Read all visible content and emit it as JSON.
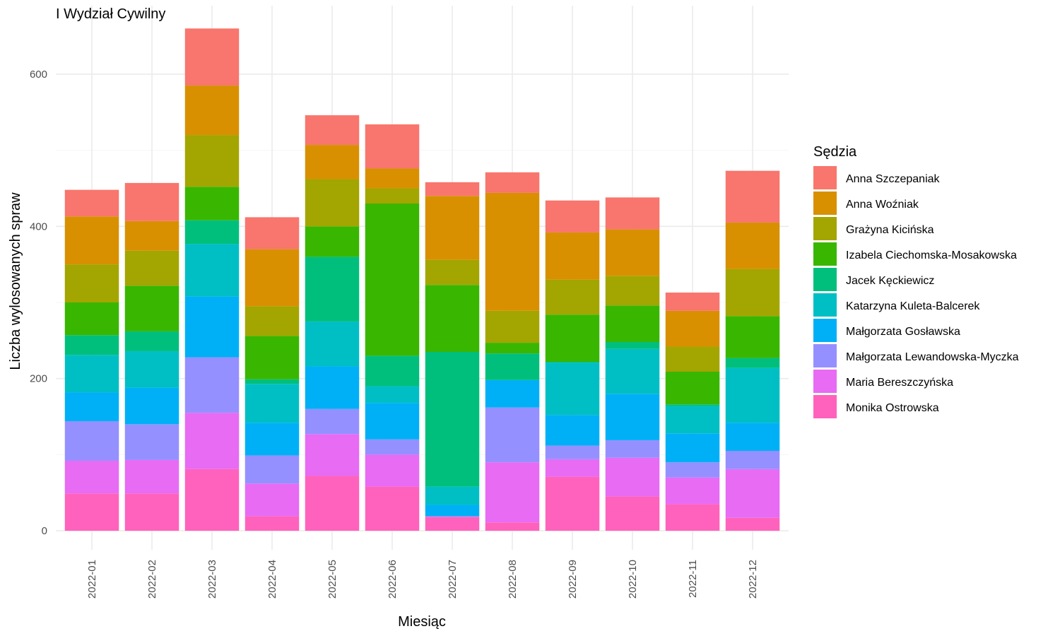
{
  "chart_data": {
    "type": "bar",
    "stacked": true,
    "title": "I Wydział Cywilny",
    "xlabel": "Miesiąc",
    "ylabel": "Liczba wylosowanych spraw",
    "ylim": [
      -25,
      690
    ],
    "yticks": [
      0,
      200,
      400,
      600
    ],
    "grid": true,
    "legend_title": "Sędzia",
    "legend_position": "right",
    "categories": [
      "2022-01",
      "2022-02",
      "2022-03",
      "2022-04",
      "2022-05",
      "2022-06",
      "2022-07",
      "2022-08",
      "2022-09",
      "2022-10",
      "2022-11",
      "2022-12"
    ],
    "series": [
      {
        "name": "Anna Szczepaniak",
        "color": "#F8766D",
        "values": [
          35,
          50,
          75,
          42,
          39,
          58,
          18,
          27,
          42,
          42,
          24,
          68
        ]
      },
      {
        "name": "Anna Woźniak",
        "color": "#D89000",
        "values": [
          63,
          39,
          65,
          75,
          45,
          26,
          84,
          155,
          62,
          61,
          47,
          61
        ]
      },
      {
        "name": "Grażyna Kicińska",
        "color": "#A3A500",
        "values": [
          50,
          46,
          68,
          39,
          62,
          20,
          33,
          42,
          46,
          39,
          33,
          62
        ]
      },
      {
        "name": "Izabela Ciechomska-Mosakowska",
        "color": "#39B600",
        "values": [
          43,
          60,
          44,
          57,
          40,
          200,
          88,
          14,
          62,
          48,
          43,
          55
        ]
      },
      {
        "name": "Jacek Kęckiewicz",
        "color": "#00BF7D",
        "values": [
          26,
          26,
          31,
          6,
          85,
          40,
          177,
          35,
          1,
          9,
          2,
          13
        ]
      },
      {
        "name": "Katarzyna Kuleta-Balcerek",
        "color": "#00BFC4",
        "values": [
          49,
          48,
          69,
          51,
          59,
          22,
          24,
          0,
          69,
          59,
          36,
          72
        ]
      },
      {
        "name": "Małgorzata Gosławska",
        "color": "#00B0F6",
        "values": [
          38,
          48,
          80,
          43,
          56,
          48,
          15,
          36,
          40,
          61,
          38,
          37
        ]
      },
      {
        "name": "Małgorzata Lewandowska-Myczka",
        "color": "#9590FF",
        "values": [
          52,
          47,
          73,
          37,
          33,
          20,
          0,
          72,
          18,
          23,
          20,
          24
        ]
      },
      {
        "name": "Maria Bereszczyńska",
        "color": "#E76BF3",
        "values": [
          43,
          44,
          74,
          43,
          55,
          42,
          1,
          79,
          23,
          51,
          35,
          64
        ]
      },
      {
        "name": "Monika Ostrowska",
        "color": "#FF62BC",
        "values": [
          49,
          49,
          81,
          19,
          72,
          58,
          18,
          11,
          71,
          45,
          35,
          17
        ]
      }
    ]
  }
}
